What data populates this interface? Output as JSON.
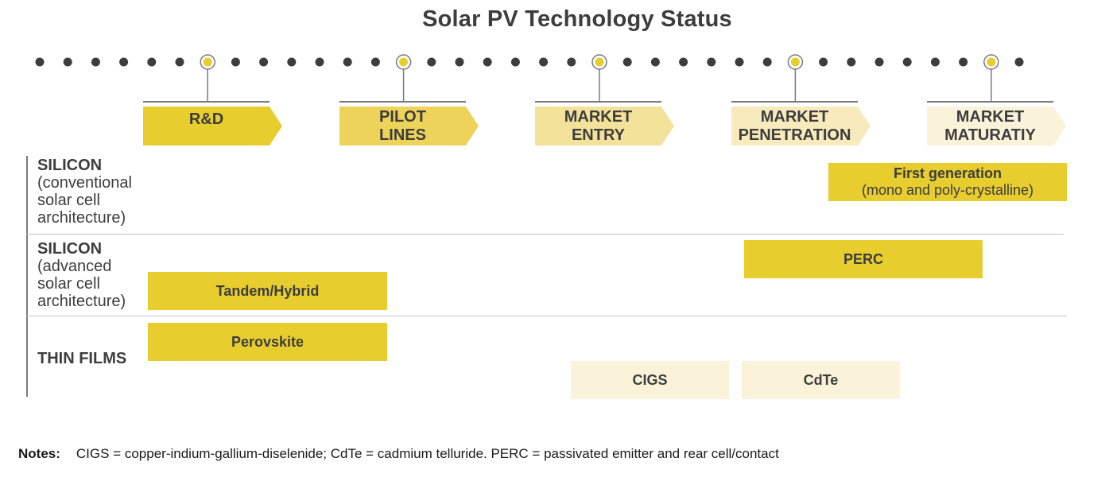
{
  "title": "Solar PV Technology Status",
  "colors": {
    "dot": "#3d3d3d",
    "marker_fill": "#e8cd2f",
    "bar_yellow": "#e8cd2f",
    "bar_cream": "#fbf3d9",
    "text": "#3d3d3d"
  },
  "stages": [
    {
      "label": "R&D",
      "color": "#e8cd2f"
    },
    {
      "label": "PILOT\nLINES",
      "color": "#eed35a"
    },
    {
      "label": "MARKET\nENTRY",
      "color": "#f3e29a"
    },
    {
      "label": "MARKET\nPENETRATION",
      "color": "#f7ebbd"
    },
    {
      "label": "MARKET\nMATURATIY",
      "color": "#fbf3d9"
    }
  ],
  "rows": [
    {
      "bold": "SILICON",
      "rest": "(conventional\nsolar cell\narchitecture)"
    },
    {
      "bold": "SILICON",
      "rest": "(advanced\nsolar cell\narchitecture)"
    },
    {
      "bold": "THIN FILMS",
      "rest": ""
    }
  ],
  "bars": {
    "first_generation": {
      "title": "First generation",
      "subtitle": "(mono and poly-crystalline)"
    },
    "perc": {
      "title": "PERC"
    },
    "tandem": {
      "title": "Tandem/Hybrid"
    },
    "perovskite": {
      "title": "Perovskite"
    },
    "cigs": {
      "title": "CIGS"
    },
    "cdte": {
      "title": "CdTe"
    }
  },
  "notes": {
    "label": "Notes:",
    "text": "CIGS = copper-indium-gallium-diselenide; CdTe = cadmium telluride. PERC = passivated emitter and rear cell/contact"
  }
}
